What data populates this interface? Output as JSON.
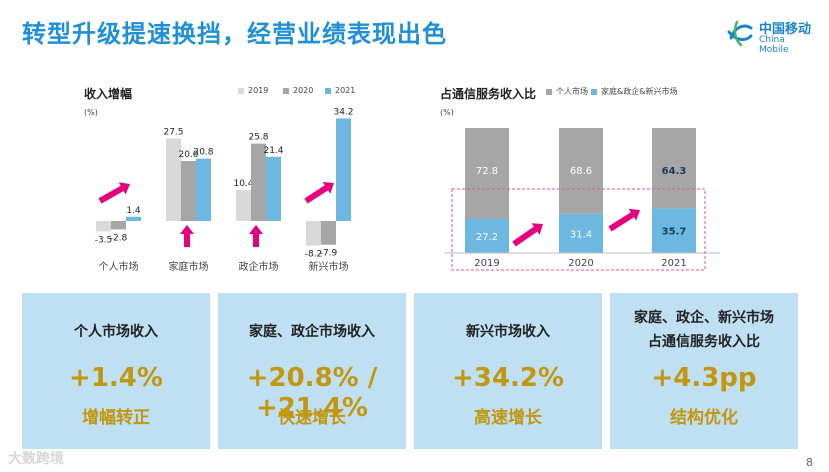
{
  "header": {
    "title": "转型升级提速换挡，经营业绩表现出色",
    "logo_cn": "中国移动",
    "logo_en": "China Mobile"
  },
  "colors": {
    "title": "#1f8fd6",
    "bar_2019": "#d9d9d9",
    "bar_2020": "#a6a6a6",
    "bar_2021": "#6cb8e0",
    "arrow": "#e6007e",
    "card_bg": "#bfe0f2",
    "card_value": "#c2960f"
  },
  "chart_data": [
    {
      "type": "bar",
      "title": "收入增幅",
      "unit": "(%)",
      "categories": [
        "个人市场",
        "家庭市场",
        "政企市场",
        "新兴市场"
      ],
      "series": [
        {
          "name": "2019",
          "values": [
            -3.5,
            27.5,
            10.4,
            -8.2
          ]
        },
        {
          "name": "2020",
          "values": [
            -2.8,
            20.0,
            25.8,
            -7.9
          ]
        },
        {
          "name": "2021",
          "values": [
            1.4,
            20.8,
            21.4,
            34.2
          ]
        }
      ],
      "labels": [
        [
          "-3.5",
          "27.5",
          "10.4",
          "-8.2"
        ],
        [
          "-2.8",
          "20.0",
          "25.8",
          "-7.9"
        ],
        [
          "1.4",
          "20.8",
          "21.4",
          "34.2"
        ]
      ],
      "ylim": [
        -10,
        36
      ]
    },
    {
      "type": "bar",
      "stacked": true,
      "title": "占通信服务收入比",
      "unit": "(%)",
      "categories": [
        "2019",
        "2020",
        "2021"
      ],
      "series": [
        {
          "name": "家庭&政企&新兴市场",
          "values": [
            27.2,
            31.4,
            35.7
          ]
        },
        {
          "name": "个人市场",
          "values": [
            72.8,
            68.6,
            64.3
          ]
        }
      ],
      "labels": [
        [
          "27.2",
          "31.4",
          "35.7"
        ],
        [
          "72.8",
          "68.6",
          "64.3"
        ]
      ],
      "legend": [
        "个人市场",
        "家庭&政企&新兴市场"
      ],
      "ylim": [
        0,
        100
      ]
    }
  ],
  "cards": [
    {
      "title": "个人市场收入",
      "value": "+1.4%",
      "subtitle": "增幅转正"
    },
    {
      "title": "家庭、政企市场收入",
      "value": "+20.8% / +21.4%",
      "subtitle": "快速增长"
    },
    {
      "title": "新兴市场收入",
      "value": "+34.2%",
      "subtitle": "高速增长"
    },
    {
      "title_line1": "家庭、政企、新兴市场",
      "title_line2": "占通信服务收入比",
      "value": "+4.3pp",
      "subtitle": "结构优化"
    }
  ],
  "footer": {
    "page": "8",
    "watermark": "大数跨境"
  }
}
